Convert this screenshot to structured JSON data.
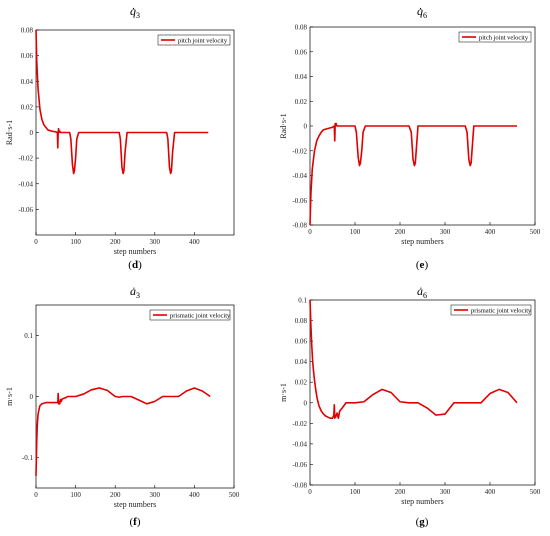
{
  "chart_data": [
    {
      "panel": "(d)",
      "title": "q̇",
      "title_sub": "3",
      "type": "line",
      "xlabel": "step numbers",
      "ylabel": "Rad·s-1",
      "xlim": [
        0,
        500
      ],
      "ylim": [
        -0.08,
        0.08
      ],
      "xticks": [
        0,
        100,
        200,
        300,
        400
      ],
      "yticks": [
        -0.06,
        -0.04,
        -0.02,
        0,
        0.02,
        0.04,
        0.06,
        0.08
      ],
      "legend_position": "top-right",
      "series": [
        {
          "name": "pitch joint velocity",
          "color": "#e00000",
          "x": [
            0,
            2,
            5,
            10,
            15,
            20,
            25,
            30,
            40,
            50,
            54,
            55,
            56,
            57,
            58,
            60,
            62,
            65,
            70,
            85,
            88,
            92,
            95,
            97,
            100,
            103,
            108,
            120,
            150,
            200,
            210,
            213,
            217,
            220,
            222,
            225,
            230,
            250,
            300,
            330,
            333,
            337,
            340,
            342,
            345,
            350,
            380,
            435
          ],
          "y": [
            0.08,
            0.055,
            0.035,
            0.018,
            0.01,
            0.006,
            0.004,
            0.002,
            0.001,
            0.0005,
            0.0,
            -0.012,
            0.0,
            0.003,
            0.0,
            0.001,
            0.0,
            0.0,
            0.0,
            0.0,
            -0.005,
            -0.025,
            -0.032,
            -0.03,
            -0.02,
            -0.005,
            0.0,
            0.0,
            0.0,
            0.0,
            0.0,
            -0.005,
            -0.027,
            -0.032,
            -0.03,
            -0.015,
            0.0,
            0.0,
            0.0,
            0.0,
            -0.005,
            -0.027,
            -0.032,
            -0.03,
            -0.015,
            0.0,
            0.0,
            0.0
          ]
        }
      ]
    },
    {
      "panel": "(e)",
      "title": "q̇",
      "title_sub": "6",
      "type": "line",
      "xlabel": "step numbers",
      "ylabel": "Rad·s-1",
      "xlim": [
        0,
        500
      ],
      "ylim": [
        -0.08,
        0.08
      ],
      "xticks": [
        0,
        100,
        200,
        300,
        400,
        500
      ],
      "yticks": [
        -0.08,
        -0.06,
        -0.04,
        -0.02,
        0,
        0.02,
        0.04,
        0.06,
        0.08
      ],
      "legend_position": "top-right",
      "series": [
        {
          "name": "pitch joint velocity",
          "color": "#e00000",
          "x": [
            0,
            2,
            5,
            10,
            15,
            20,
            25,
            30,
            40,
            50,
            54,
            55,
            56,
            57,
            58,
            60,
            62,
            65,
            70,
            100,
            103,
            107,
            110,
            112,
            115,
            118,
            123,
            140,
            220,
            225,
            229,
            232,
            234,
            237,
            240,
            245,
            260,
            345,
            349,
            353,
            356,
            358,
            361,
            364,
            370,
            400,
            460
          ],
          "y": [
            -0.08,
            -0.055,
            -0.035,
            -0.02,
            -0.012,
            -0.008,
            -0.005,
            -0.003,
            -0.002,
            -0.001,
            0.0,
            -0.012,
            0.002,
            0.0,
            0.002,
            0.0,
            0.0,
            0.0,
            0.0,
            0.0,
            -0.005,
            -0.025,
            -0.032,
            -0.03,
            -0.02,
            -0.005,
            0.0,
            0.0,
            0.0,
            -0.005,
            -0.027,
            -0.032,
            -0.03,
            -0.015,
            0.0,
            0.0,
            0.0,
            0.0,
            -0.005,
            -0.027,
            -0.032,
            -0.03,
            -0.015,
            0.0,
            0.0,
            0.0,
            0.0
          ]
        }
      ]
    },
    {
      "panel": "(f)",
      "title": "ȧ",
      "title_sub": "3",
      "type": "line",
      "xlabel": "step numbers",
      "ylabel": "m·s-1",
      "xlim": [
        0,
        500
      ],
      "ylim": [
        -0.15,
        0.15
      ],
      "xticks": [
        0,
        100,
        200,
        300,
        400,
        500
      ],
      "yticks": [
        -0.1,
        0,
        0.1
      ],
      "legend_position": "top-right",
      "series": [
        {
          "name": "prismatic joint velocity",
          "color": "#e00000",
          "x": [
            0,
            1,
            2,
            3,
            5,
            8,
            10,
            15,
            20,
            25,
            30,
            40,
            50,
            55,
            56,
            57,
            58,
            60,
            62,
            64,
            66,
            70,
            75,
            80,
            90,
            100,
            120,
            140,
            160,
            180,
            200,
            210,
            220,
            240,
            260,
            280,
            300,
            320,
            340,
            360,
            380,
            400,
            420,
            440
          ],
          "y": [
            -0.13,
            -0.1,
            -0.07,
            -0.05,
            -0.03,
            -0.02,
            -0.015,
            -0.012,
            -0.011,
            -0.01,
            -0.01,
            -0.01,
            -0.01,
            -0.01,
            0.005,
            -0.012,
            -0.008,
            -0.012,
            -0.005,
            -0.008,
            -0.004,
            -0.003,
            -0.002,
            0.0,
            0.0,
            0.0,
            0.004,
            0.011,
            0.014,
            0.01,
            0.0,
            -0.001,
            0.0,
            0.0,
            -0.006,
            -0.012,
            -0.008,
            0.0,
            0.0,
            0.0,
            0.009,
            0.014,
            0.009,
            0.0
          ]
        }
      ]
    },
    {
      "panel": "(g)",
      "title": "ȧ",
      "title_sub": "6",
      "type": "line",
      "xlabel": "step numbers",
      "ylabel": "m·s-1",
      "xlim": [
        0,
        500
      ],
      "ylim": [
        -0.08,
        0.1
      ],
      "xticks": [
        0,
        100,
        200,
        300,
        400,
        500
      ],
      "yticks": [
        -0.08,
        -0.06,
        -0.04,
        -0.02,
        0,
        0.02,
        0.04,
        0.06,
        0.08,
        0.1
      ],
      "legend_position": "top-right",
      "series": [
        {
          "name": "prismatic joint velocity",
          "color": "#e00000",
          "x": [
            0,
            2,
            4,
            6,
            8,
            10,
            13,
            16,
            20,
            25,
            30,
            35,
            40,
            45,
            50,
            53,
            54,
            55,
            56,
            57,
            60,
            63,
            66,
            70,
            75,
            80,
            90,
            100,
            120,
            140,
            160,
            180,
            200,
            220,
            240,
            260,
            280,
            300,
            320,
            340,
            360,
            380,
            400,
            420,
            440,
            460
          ],
          "y": [
            0.1,
            0.075,
            0.055,
            0.04,
            0.03,
            0.022,
            0.012,
            0.004,
            -0.003,
            -0.008,
            -0.011,
            -0.013,
            -0.014,
            -0.015,
            -0.015,
            -0.012,
            -0.002,
            -0.015,
            -0.012,
            -0.014,
            -0.01,
            -0.015,
            -0.008,
            -0.006,
            -0.003,
            0.0,
            0.0,
            0.0,
            0.001,
            0.008,
            0.013,
            0.01,
            0.001,
            0.0,
            0.0,
            -0.005,
            -0.012,
            -0.011,
            0.0,
            0.0,
            0.0,
            0.0,
            0.009,
            0.013,
            0.01,
            0.0
          ]
        }
      ]
    }
  ]
}
